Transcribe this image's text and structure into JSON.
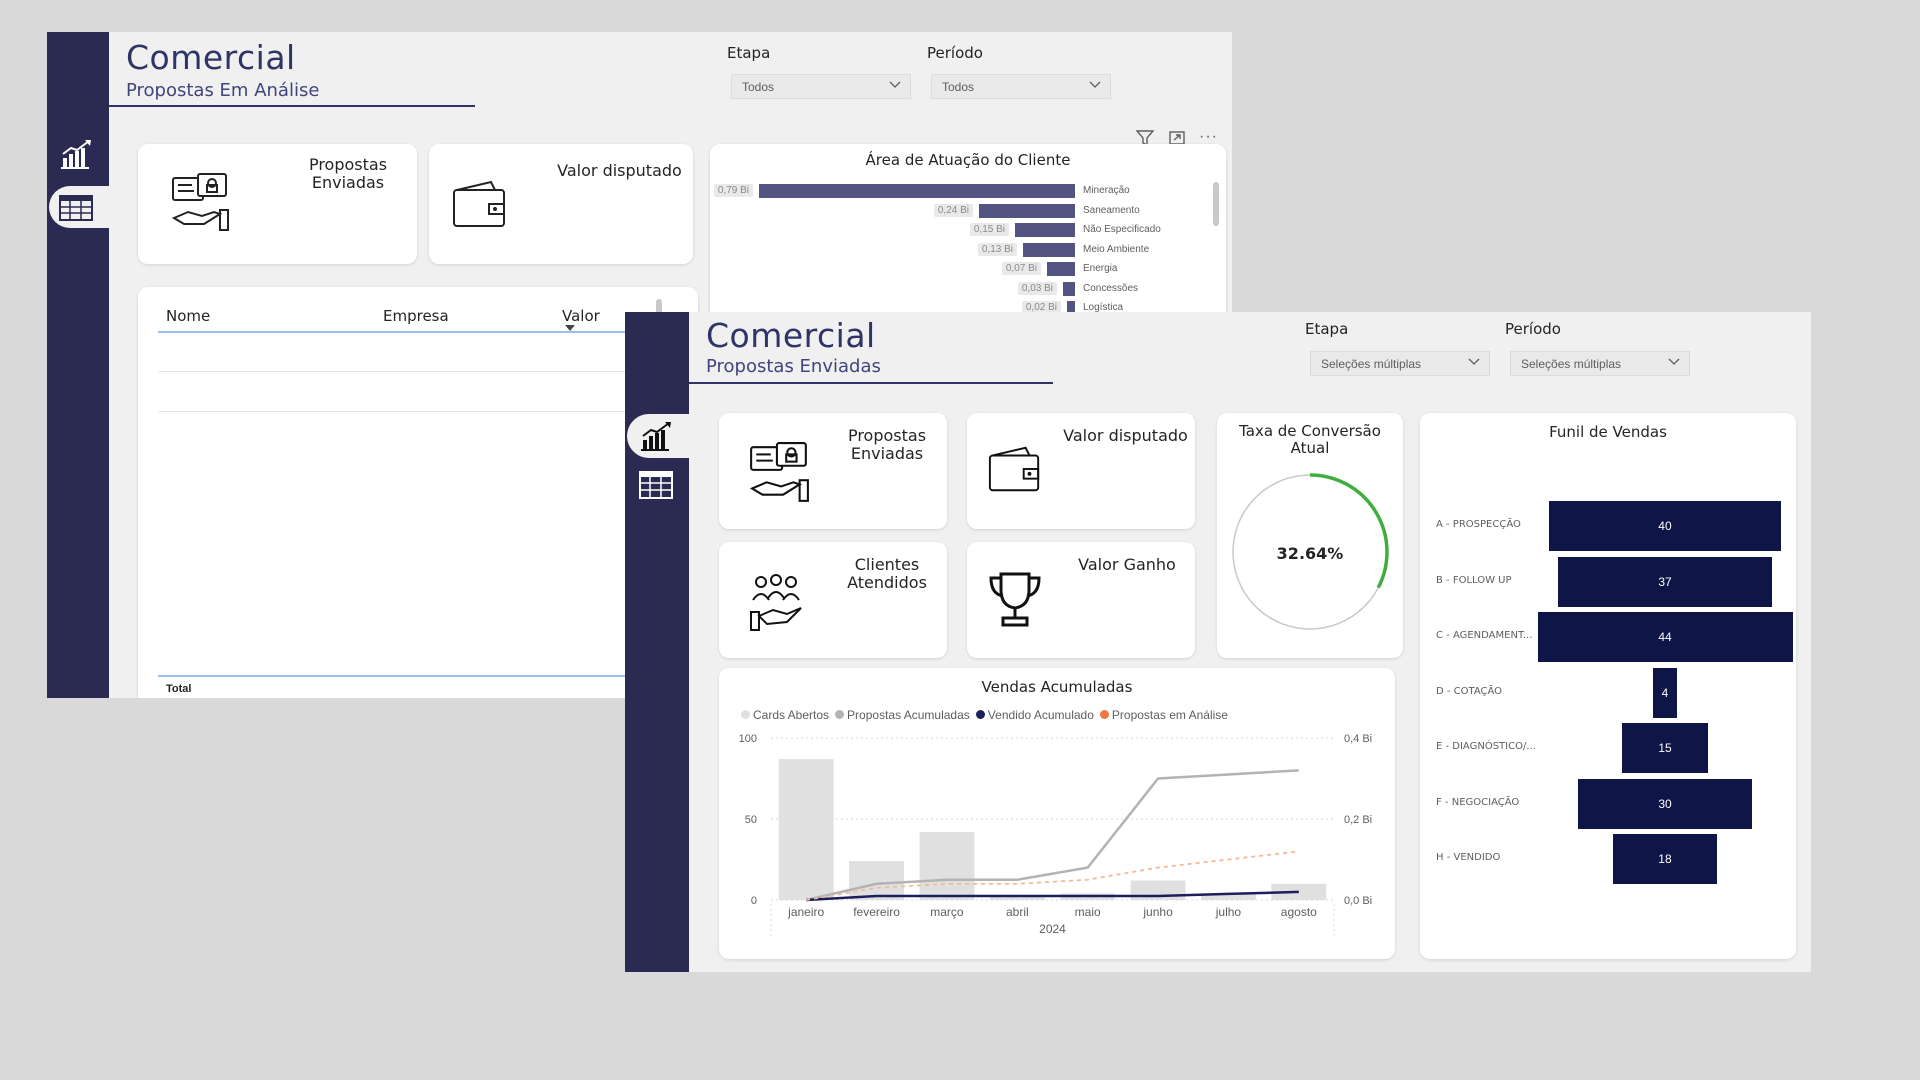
{
  "back_report": {
    "title": "Comercial",
    "subtitle": "Propostas Em Análise",
    "filters": [
      {
        "label": "Etapa",
        "value": "Todos"
      },
      {
        "label": "Período",
        "value": "Todos"
      }
    ],
    "kpis": {
      "propostas": {
        "line1": "Propostas",
        "line2": "Enviadas"
      },
      "valor": "Valor disputado"
    },
    "table": {
      "columns": [
        "Nome",
        "Empresa",
        "Valor"
      ],
      "total_label": "Total"
    },
    "area_chart": {
      "title": "Área de Atuação do Cliente",
      "rows": [
        {
          "label": "0,79 Bi",
          "value": 0.79,
          "category": "Mineração"
        },
        {
          "label": "0,24 Bi",
          "value": 0.24,
          "category": "Saneamento"
        },
        {
          "label": "0,15 Bi",
          "value": 0.15,
          "category": "Não Especificado"
        },
        {
          "label": "0,13 Bi",
          "value": 0.13,
          "category": "Meio Ambiente"
        },
        {
          "label": "0,07 Bi",
          "value": 0.07,
          "category": "Energia"
        },
        {
          "label": "0,03 Bi",
          "value": 0.03,
          "category": "Concessões"
        },
        {
          "label": "0,02 Bi",
          "value": 0.02,
          "category": "Logística"
        }
      ]
    }
  },
  "front_report": {
    "title": "Comercial",
    "subtitle": "Propostas Enviadas",
    "filters": [
      {
        "label": "Etapa",
        "value": "Seleções múltiplas"
      },
      {
        "label": "Período",
        "value": "Seleções múltiplas"
      }
    ],
    "kpis": {
      "propostas": {
        "line1": "Propostas",
        "line2": "Enviadas"
      },
      "valor_disputado": "Valor disputado",
      "clientes": {
        "line1": "Clientes",
        "line2": "Atendidos"
      },
      "valor_ganho": "Valor Ganho"
    },
    "conversion": {
      "title_line1": "Taxa de Conversão",
      "title_line2": "Atual",
      "value_text": "32.64%",
      "value": 0.3264
    },
    "funnel": {
      "title": "Funil de Vendas",
      "stages": [
        {
          "label": "A - PROSPECÇÃO",
          "value": 40
        },
        {
          "label": "B - FOLLOW UP",
          "value": 37
        },
        {
          "label": "C - AGENDAMENT...",
          "value": 44
        },
        {
          "label": "D - COTAÇÃO",
          "value": 4
        },
        {
          "label": "E - DIAGNÓSTICO/...",
          "value": 15
        },
        {
          "label": "F - NEGOCIAÇÃO",
          "value": 30
        },
        {
          "label": "H - VENDIDO",
          "value": 18
        }
      ]
    },
    "vendas": {
      "title": "Vendas Acumuladas",
      "year_label": "2024",
      "legend": [
        {
          "name": "Cards Abertos",
          "color": "#e0e0e0"
        },
        {
          "name": "Propostas Acumuladas",
          "color": "#b3b3b3"
        },
        {
          "name": "Vendido Acumulado",
          "color": "#1b1f5c"
        },
        {
          "name": "Propostas em Análise",
          "color": "#f0773f"
        }
      ],
      "left_ticks": [
        "100",
        "50",
        "0"
      ],
      "right_ticks": [
        "0,4 Bi",
        "0,2 Bi",
        "0,0 Bi"
      ]
    }
  },
  "chart_data": {
    "type": "bar",
    "title": "Vendas Acumuladas",
    "categories": [
      "janeiro",
      "fevereiro",
      "março",
      "abril",
      "maio",
      "junho",
      "julho",
      "agosto"
    ],
    "ylim": [
      0,
      100
    ],
    "y2lim": [
      0,
      0.4
    ],
    "series": [
      {
        "name": "Cards Abertos",
        "type": "bar",
        "axis": "left",
        "values": [
          87,
          24,
          42,
          2,
          4,
          12,
          4,
          10
        ]
      },
      {
        "name": "Propostas Acumuladas",
        "type": "line",
        "axis": "right",
        "values": [
          0,
          0.04,
          0.05,
          0.05,
          0.08,
          0.3,
          0.31,
          0.32
        ]
      },
      {
        "name": "Vendido Acumulado",
        "type": "line",
        "axis": "right",
        "values": [
          0,
          0.01,
          0.01,
          0.01,
          0.01,
          0.01,
          0.015,
          0.02
        ]
      },
      {
        "name": "Propostas em Análise",
        "type": "line",
        "axis": "right",
        "values": [
          0,
          0.03,
          0.04,
          0.04,
          0.05,
          0.08,
          0.1,
          0.12
        ]
      }
    ]
  }
}
